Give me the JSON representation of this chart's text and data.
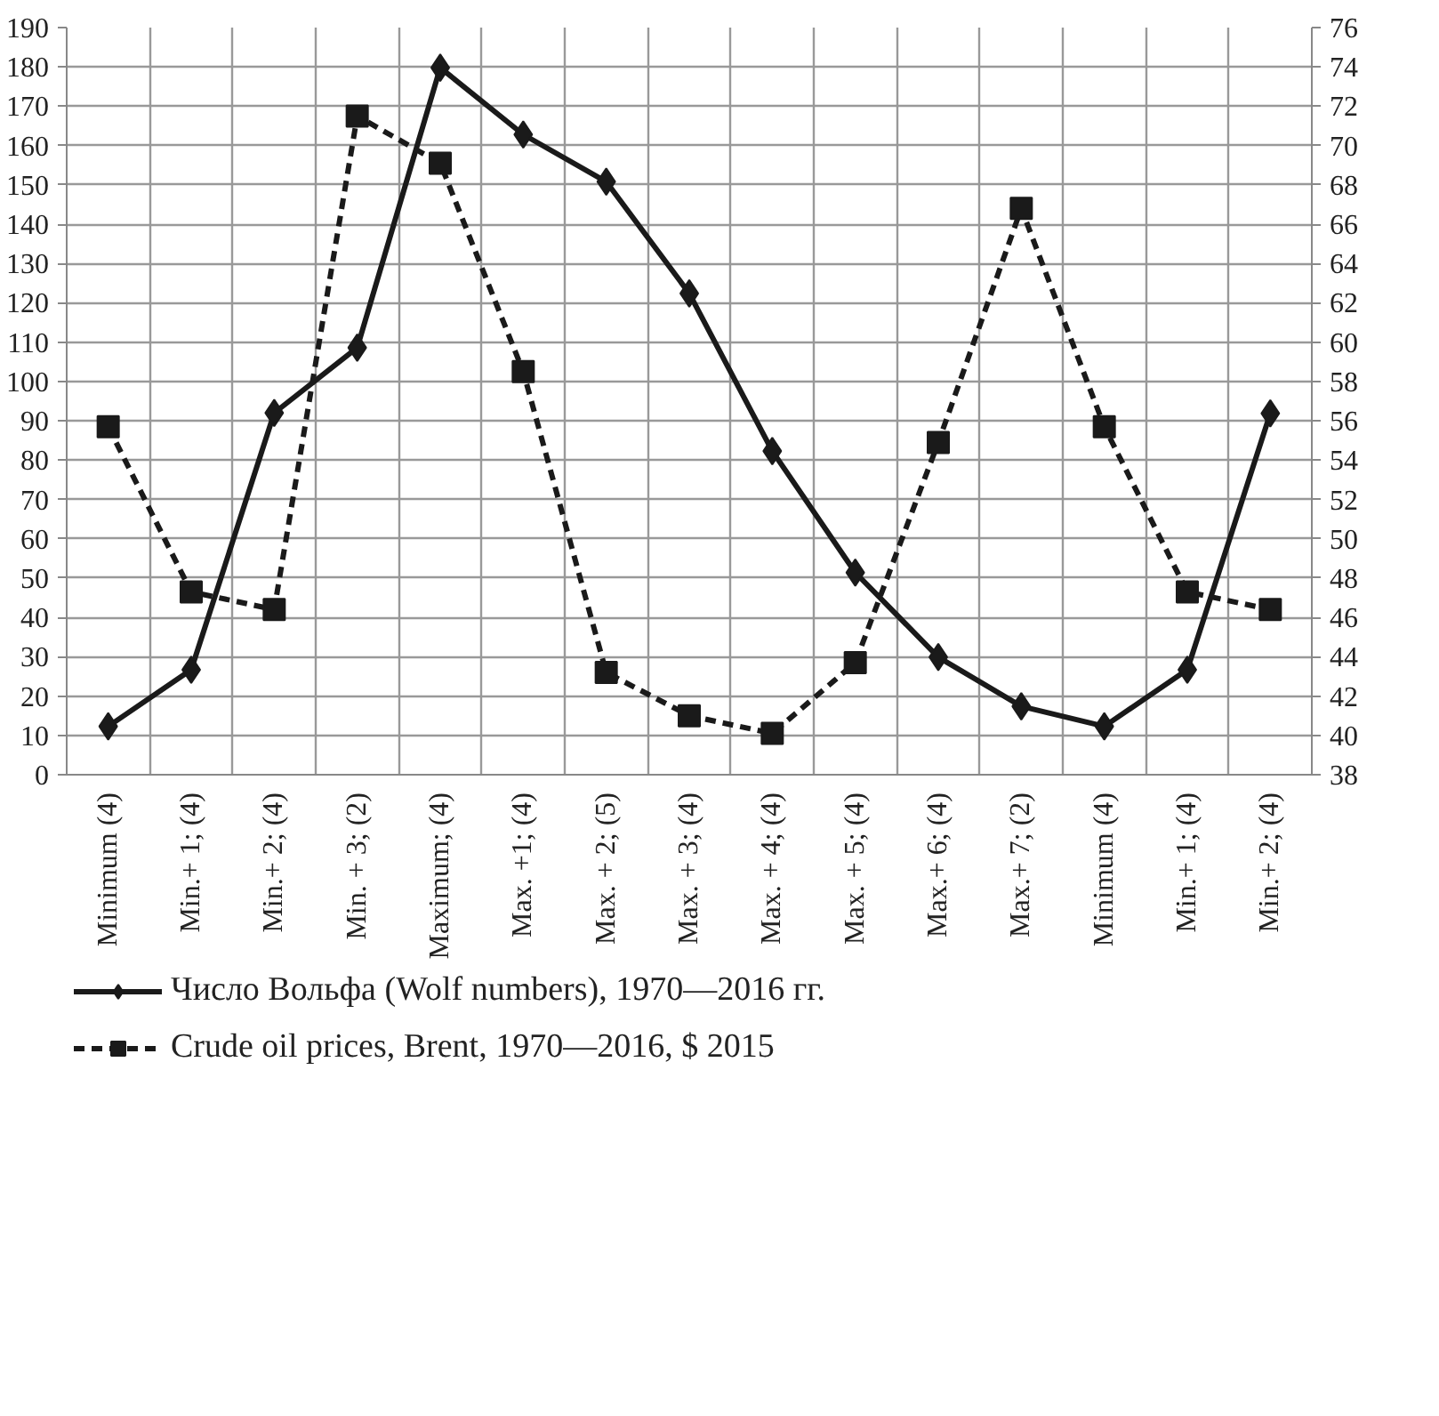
{
  "chart_data": {
    "type": "line",
    "categories": [
      "Minimum (4)",
      "Min.+ 1; (4)",
      "Min.+ 2; (4)",
      "Min. + 3; (2)",
      "Maximum; (4)",
      "Max. +1; (4)",
      "Max. + 2; (5)",
      "Max. + 3; (4)",
      "Max. + 4; (4)",
      "Max. + 5; (4)",
      "Max.+ 6; (4)",
      "Max.+ 7; (2)",
      "Minimum (4)",
      "Min.+ 1; (4)",
      "Min.+ 2; (4)"
    ],
    "series": [
      {
        "name": "Число Вольфа (Wolf numbers), 1970—2016 гг.",
        "color": "#1a1a1a",
        "marker": "diamond",
        "line_style": "solid",
        "values": [
          12.3,
          26.7,
          92,
          108.6,
          179.8,
          162.8,
          150.8,
          122.4,
          82.3,
          51.4,
          29.9,
          17.4,
          12.3,
          26.7,
          91.9
        ]
      },
      {
        "name": "Crude oil prices, Brent, 1970—2016, $ 2015",
        "color": "#1a1a1a",
        "marker": "square",
        "line_style": "dashed",
        "axis": "y2",
        "values": [
          55.7,
          47.3,
          46.4,
          71.5,
          69.1,
          58.5,
          43.2,
          41.0,
          40.1,
          43.7,
          54.9,
          66.8,
          55.7,
          47.3,
          46.4
        ]
      }
    ],
    "ylim": [
      0,
      190
    ],
    "yticks": [
      0,
      10,
      20,
      30,
      40,
      50,
      60,
      70,
      80,
      90,
      100,
      110,
      120,
      130,
      140,
      150,
      160,
      170,
      180,
      190
    ],
    "y2lim": [
      38,
      76
    ],
    "y2ticks": [
      38,
      40,
      42,
      44,
      46,
      48,
      50,
      52,
      54,
      56,
      58,
      60,
      62,
      64,
      66,
      68,
      70,
      72,
      74,
      76
    ],
    "grid": true,
    "legend": "bottom"
  }
}
